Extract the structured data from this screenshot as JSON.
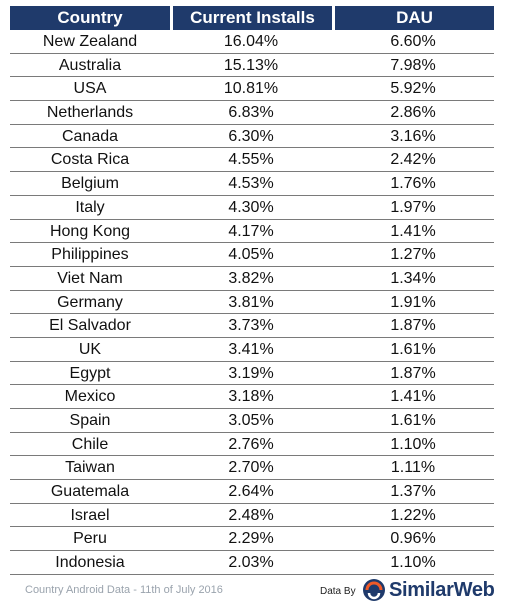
{
  "chart_data": {
    "type": "table",
    "columns": [
      "Country",
      "Current Installs",
      "DAU"
    ],
    "rows": [
      [
        "New Zealand",
        "16.04%",
        "6.60%"
      ],
      [
        "Australia",
        "15.13%",
        "7.98%"
      ],
      [
        "USA",
        "10.81%",
        "5.92%"
      ],
      [
        "Netherlands",
        "6.83%",
        "2.86%"
      ],
      [
        "Canada",
        "6.30%",
        "3.16%"
      ],
      [
        "Costa Rica",
        "4.55%",
        "2.42%"
      ],
      [
        "Belgium",
        "4.53%",
        "1.76%"
      ],
      [
        "Italy",
        "4.30%",
        "1.97%"
      ],
      [
        "Hong Kong",
        "4.17%",
        "1.41%"
      ],
      [
        "Philippines",
        "4.05%",
        "1.27%"
      ],
      [
        "Viet Nam",
        "3.82%",
        "1.34%"
      ],
      [
        "Germany",
        "3.81%",
        "1.91%"
      ],
      [
        "El Salvador",
        "3.73%",
        "1.87%"
      ],
      [
        "UK",
        "3.41%",
        "1.61%"
      ],
      [
        "Egypt",
        "3.19%",
        "1.87%"
      ],
      [
        "Mexico",
        "3.18%",
        "1.41%"
      ],
      [
        "Spain",
        "3.05%",
        "1.61%"
      ],
      [
        "Chile",
        "2.76%",
        "1.10%"
      ],
      [
        "Taiwan",
        "2.70%",
        "1.11%"
      ],
      [
        "Guatemala",
        "2.64%",
        "1.37%"
      ],
      [
        "Israel",
        "2.48%",
        "1.22%"
      ],
      [
        "Peru",
        "2.29%",
        "0.96%"
      ],
      [
        "Indonesia",
        "2.03%",
        "1.10%"
      ]
    ],
    "header_color": "#1f3a6b"
  },
  "footer": {
    "note": "Country Android Data - 11th of July 2016",
    "data_by": "Data By",
    "brand": "SimilarWeb"
  },
  "icons": {
    "logo": "similarweb-logo-icon"
  },
  "colors": {
    "header": "#1f3a6b",
    "brand": "#1f3a6b",
    "logo_accent": "#f05a28"
  }
}
